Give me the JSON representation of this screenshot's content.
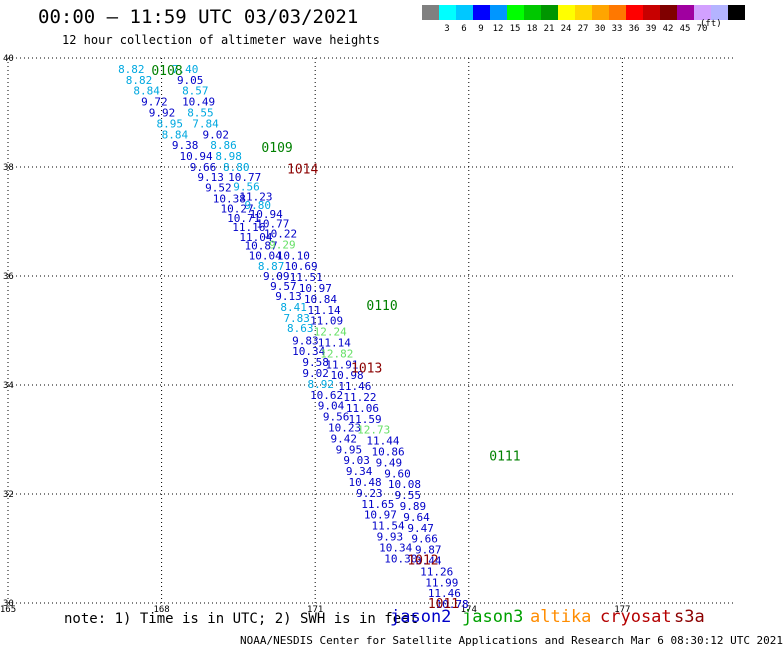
{
  "title": "00:00 – 11:59 UTC 03/03/2021",
  "subtitle": "12 hour collection of altimeter wave heights",
  "note": "note: 1) Time is in UTC; 2) SWH is in feet",
  "credit": "NOAA/NESDIS Center for Satellite Applications and Research  Mar  6 08:30:12 UTC 2021",
  "colors": {
    "jason2": "#0000c8",
    "jason3": "#00a000",
    "altika": "#ff8c00",
    "cryosat": "#b40000",
    "s3a": "#8b0000",
    "cyan_value": "#00a8e0",
    "light_green_value": "#66e066",
    "pass_green": "#008000",
    "pass_red": "#8b0000"
  },
  "legend": [
    {
      "key": "jason2",
      "label": "jason2",
      "color": "#0000c8"
    },
    {
      "key": "jason3",
      "label": "jason3",
      "color": "#00a000"
    },
    {
      "key": "altika",
      "label": "altika",
      "color": "#ff8c00"
    },
    {
      "key": "cryosat",
      "label": "cryosat",
      "color": "#b40000"
    },
    {
      "key": "s3a",
      "label": "s3a",
      "color": "#8b0000"
    }
  ],
  "scale": {
    "unit": "(ft)",
    "swatches": [
      "#808080",
      "#00ffff",
      "#00c8ff",
      "#0000ff",
      "#0096ff",
      "#00ff00",
      "#00c800",
      "#009600",
      "#ffff00",
      "#ffd700",
      "#ffa500",
      "#ff7800",
      "#ff0000",
      "#c80000",
      "#800000",
      "#a000a0",
      "#d2a0ff",
      "#b4b4ff",
      "#000000"
    ],
    "labels": [
      "3",
      "6",
      "9",
      "12",
      "15",
      "18",
      "21",
      "24",
      "27",
      "30",
      "33",
      "36",
      "39",
      "42",
      "45",
      "70"
    ]
  },
  "map_axes": {
    "lon_ticks": [
      "165",
      "168",
      "171",
      "174",
      "177"
    ],
    "lat_ticks": [
      "40",
      "38",
      "36",
      "34",
      "32",
      "30"
    ],
    "lon_range": [
      165,
      179.2
    ],
    "lat_range": [
      30,
      40
    ]
  },
  "pass_labels": [
    {
      "text": "0108",
      "lon": 167.8,
      "lat": 39.78,
      "c": "pass_green"
    },
    {
      "text": "0109",
      "lon": 169.95,
      "lat": 38.37,
      "c": "pass_green"
    },
    {
      "text": "1014",
      "lon": 170.45,
      "lat": 37.97,
      "c": "pass_red"
    },
    {
      "text": "0110",
      "lon": 172.0,
      "lat": 35.47,
      "c": "pass_green"
    },
    {
      "text": "1013",
      "lon": 171.7,
      "lat": 34.32,
      "c": "pass_red"
    },
    {
      "text": "0111",
      "lon": 174.4,
      "lat": 32.71,
      "c": "pass_green"
    },
    {
      "text": "1012",
      "lon": 172.8,
      "lat": 30.8,
      "c": "pass_red"
    },
    {
      "text": "1011",
      "lon": 173.2,
      "lat": 30.0,
      "c": "pass_red"
    }
  ],
  "tracks": [
    {
      "name": "jason-pass-track",
      "points": [
        {
          "lon": 167.15,
          "lat": 39.8,
          "v": "8.82",
          "c": "cyan_value"
        },
        {
          "lon": 167.3,
          "lat": 39.6,
          "v": "8.82",
          "c": "cyan_value"
        },
        {
          "lon": 167.45,
          "lat": 39.4,
          "v": "8.84",
          "c": "cyan_value"
        },
        {
          "lon": 167.6,
          "lat": 39.2,
          "v": "9.72",
          "c": "jason2"
        },
        {
          "lon": 167.75,
          "lat": 39.0,
          "v": "9.92",
          "c": "jason2"
        },
        {
          "lon": 167.9,
          "lat": 38.8,
          "v": "8.95",
          "c": "cyan_value"
        },
        {
          "lon": 168.0,
          "lat": 38.6,
          "v": "8.84",
          "c": "cyan_value"
        },
        {
          "lon": 168.2,
          "lat": 38.4,
          "v": "9.38",
          "c": "jason2"
        },
        {
          "lon": 168.35,
          "lat": 38.2,
          "v": "10.94",
          "c": "jason2"
        },
        {
          "lon": 168.55,
          "lat": 38.0,
          "v": "9.66",
          "c": "jason2"
        },
        {
          "lon": 168.7,
          "lat": 37.82,
          "v": "9.13",
          "c": "jason2"
        },
        {
          "lon": 168.85,
          "lat": 37.62,
          "v": "9.52",
          "c": "jason2"
        },
        {
          "lon": 169.0,
          "lat": 37.42,
          "v": "10.38",
          "c": "jason2"
        },
        {
          "lon": 169.15,
          "lat": 37.24,
          "v": "10.27",
          "c": "jason2"
        },
        {
          "lon": 169.28,
          "lat": 37.06,
          "v": "10.71",
          "c": "jason2"
        },
        {
          "lon": 169.38,
          "lat": 36.9,
          "v": "11.16",
          "c": "jason2"
        },
        {
          "lon": 169.52,
          "lat": 36.72,
          "v": "11.04",
          "c": "jason2"
        },
        {
          "lon": 169.62,
          "lat": 36.56,
          "v": "10.87",
          "c": "jason2"
        },
        {
          "lon": 169.7,
          "lat": 36.38,
          "v": "10.04",
          "c": "jason2"
        },
        {
          "lon": 169.88,
          "lat": 36.18,
          "v": "8.87",
          "c": "cyan_value"
        },
        {
          "lon": 169.98,
          "lat": 36.0,
          "v": "9.09",
          "c": "jason2"
        },
        {
          "lon": 170.12,
          "lat": 35.82,
          "v": "9.57",
          "c": "jason2"
        },
        {
          "lon": 170.22,
          "lat": 35.63,
          "v": "9.13",
          "c": "jason2"
        },
        {
          "lon": 170.32,
          "lat": 35.43,
          "v": "8.41",
          "c": "cyan_value"
        },
        {
          "lon": 170.38,
          "lat": 35.23,
          "v": "7.83",
          "c": "cyan_value"
        },
        {
          "lon": 170.45,
          "lat": 35.05,
          "v": "8.63",
          "c": "cyan_value"
        },
        {
          "lon": 170.55,
          "lat": 34.82,
          "v": "9.83",
          "c": "jason2"
        },
        {
          "lon": 170.55,
          "lat": 34.62,
          "v": "10.34",
          "c": "jason2"
        },
        {
          "lon": 170.75,
          "lat": 34.42,
          "v": "9.58",
          "c": "jason2"
        },
        {
          "lon": 170.75,
          "lat": 34.22,
          "v": "9.02",
          "c": "jason2"
        },
        {
          "lon": 170.85,
          "lat": 34.02,
          "v": "8.92",
          "c": "cyan_value"
        },
        {
          "lon": 170.9,
          "lat": 33.82,
          "v": "10.62",
          "c": "jason2"
        },
        {
          "lon": 171.05,
          "lat": 33.62,
          "v": "9.04",
          "c": "jason2"
        },
        {
          "lon": 171.15,
          "lat": 33.42,
          "v": "9.56",
          "c": "jason2"
        },
        {
          "lon": 171.25,
          "lat": 33.22,
          "v": "10.23",
          "c": "jason2"
        },
        {
          "lon": 171.3,
          "lat": 33.02,
          "v": "9.42",
          "c": "jason2"
        },
        {
          "lon": 171.4,
          "lat": 32.82,
          "v": "9.95",
          "c": "jason2"
        },
        {
          "lon": 171.55,
          "lat": 32.62,
          "v": "9.03",
          "c": "jason2"
        },
        {
          "lon": 171.6,
          "lat": 32.42,
          "v": "9.34",
          "c": "jason2"
        },
        {
          "lon": 171.65,
          "lat": 32.22,
          "v": "10.48",
          "c": "jason2"
        },
        {
          "lon": 171.8,
          "lat": 32.02,
          "v": "9.23",
          "c": "jason2"
        },
        {
          "lon": 171.9,
          "lat": 31.82,
          "v": "11.65",
          "c": "jason2"
        },
        {
          "lon": 171.95,
          "lat": 31.62,
          "v": "10.97",
          "c": "jason2"
        },
        {
          "lon": 172.1,
          "lat": 31.42,
          "v": "11.54",
          "c": "jason2"
        },
        {
          "lon": 172.2,
          "lat": 31.22,
          "v": "9.93",
          "c": "jason2"
        },
        {
          "lon": 172.25,
          "lat": 31.02,
          "v": "10.34",
          "c": "jason2"
        },
        {
          "lon": 172.35,
          "lat": 30.82,
          "v": "10.30",
          "c": "jason2"
        }
      ]
    },
    {
      "name": "cryosat-pass-track",
      "points": [
        {
          "lon": 168.2,
          "lat": 39.8,
          "v": "7.40",
          "c": "cyan_value"
        },
        {
          "lon": 168.3,
          "lat": 39.6,
          "v": "9.05",
          "c": "jason2"
        },
        {
          "lon": 168.4,
          "lat": 39.4,
          "v": "8.57",
          "c": "cyan_value"
        },
        {
          "lon": 168.4,
          "lat": 39.2,
          "v": "10.49",
          "c": "jason2"
        },
        {
          "lon": 168.5,
          "lat": 39.0,
          "v": "8.55",
          "c": "cyan_value"
        },
        {
          "lon": 168.6,
          "lat": 38.8,
          "v": "7.84",
          "c": "cyan_value"
        },
        {
          "lon": 168.8,
          "lat": 38.6,
          "v": "9.02",
          "c": "jason2"
        },
        {
          "lon": 168.95,
          "lat": 38.4,
          "v": "8.86",
          "c": "cyan_value"
        },
        {
          "lon": 169.05,
          "lat": 38.2,
          "v": "8.98",
          "c": "cyan_value"
        },
        {
          "lon": 169.2,
          "lat": 38.0,
          "v": "8.80",
          "c": "cyan_value"
        },
        {
          "lon": 169.3,
          "lat": 37.82,
          "v": "10.77",
          "c": "jason2"
        },
        {
          "lon": 169.4,
          "lat": 37.64,
          "v": "9.56",
          "c": "cyan_value"
        },
        {
          "lon": 169.52,
          "lat": 37.46,
          "v": "11.23",
          "c": "jason2"
        },
        {
          "lon": 169.62,
          "lat": 37.3,
          "v": "9.80",
          "c": "cyan_value"
        },
        {
          "lon": 169.72,
          "lat": 37.14,
          "v": "10.94",
          "c": "jason2"
        },
        {
          "lon": 169.85,
          "lat": 36.96,
          "v": "10.77",
          "c": "jason2"
        },
        {
          "lon": 170.0,
          "lat": 36.78,
          "v": "10.22",
          "c": "jason2"
        },
        {
          "lon": 170.1,
          "lat": 36.58,
          "v": "9.29",
          "c": "light_green_value"
        },
        {
          "lon": 170.25,
          "lat": 36.38,
          "v": "10.10",
          "c": "jason2"
        },
        {
          "lon": 170.4,
          "lat": 36.18,
          "v": "10.69",
          "c": "jason2"
        },
        {
          "lon": 170.5,
          "lat": 35.98,
          "v": "11.51",
          "c": "jason2"
        },
        {
          "lon": 170.68,
          "lat": 35.78,
          "v": "10.97",
          "c": "jason2"
        },
        {
          "lon": 170.78,
          "lat": 35.58,
          "v": "10.84",
          "c": "jason2"
        },
        {
          "lon": 170.85,
          "lat": 35.38,
          "v": "11.14",
          "c": "jason2"
        },
        {
          "lon": 170.9,
          "lat": 35.18,
          "v": "11.09",
          "c": "jason2"
        },
        {
          "lon": 170.97,
          "lat": 34.98,
          "v": "12.24",
          "c": "light_green_value"
        },
        {
          "lon": 171.05,
          "lat": 34.78,
          "v": "11.14",
          "c": "jason2"
        },
        {
          "lon": 171.1,
          "lat": 34.58,
          "v": "12.82",
          "c": "light_green_value"
        },
        {
          "lon": 171.2,
          "lat": 34.38,
          "v": "11.91",
          "c": "jason2"
        },
        {
          "lon": 171.3,
          "lat": 34.18,
          "v": "10.98",
          "c": "jason2"
        },
        {
          "lon": 171.45,
          "lat": 33.98,
          "v": "11.46",
          "c": "jason2"
        },
        {
          "lon": 171.55,
          "lat": 33.78,
          "v": "11.22",
          "c": "jason2"
        },
        {
          "lon": 171.6,
          "lat": 33.58,
          "v": "11.06",
          "c": "jason2"
        },
        {
          "lon": 171.65,
          "lat": 33.38,
          "v": "11.59",
          "c": "jason2"
        },
        {
          "lon": 171.82,
          "lat": 33.18,
          "v": "12.73",
          "c": "light_green_value"
        },
        {
          "lon": 172.0,
          "lat": 32.98,
          "v": "11.44",
          "c": "jason2"
        },
        {
          "lon": 172.1,
          "lat": 32.78,
          "v": "10.86",
          "c": "jason2"
        },
        {
          "lon": 172.18,
          "lat": 32.58,
          "v": "9.49",
          "c": "jason2"
        },
        {
          "lon": 172.35,
          "lat": 32.38,
          "v": "9.60",
          "c": "jason2"
        },
        {
          "lon": 172.42,
          "lat": 32.18,
          "v": "10.08",
          "c": "jason2"
        },
        {
          "lon": 172.55,
          "lat": 31.98,
          "v": "9.55",
          "c": "jason2"
        },
        {
          "lon": 172.65,
          "lat": 31.78,
          "v": "9.89",
          "c": "jason2"
        },
        {
          "lon": 172.72,
          "lat": 31.58,
          "v": "9.64",
          "c": "jason2"
        },
        {
          "lon": 172.8,
          "lat": 31.38,
          "v": "9.47",
          "c": "jason2"
        },
        {
          "lon": 172.88,
          "lat": 31.18,
          "v": "9.66",
          "c": "jason2"
        },
        {
          "lon": 172.95,
          "lat": 30.98,
          "v": "9.87",
          "c": "jason2"
        },
        {
          "lon": 172.95,
          "lat": 30.78,
          "v": "9.44",
          "c": "jason2"
        },
        {
          "lon": 173.05,
          "lat": 30.58,
          "v": "11.26",
          "c": "jason2"
        },
        {
          "lon": 173.15,
          "lat": 30.38,
          "v": "11.99",
          "c": "jason2"
        },
        {
          "lon": 173.2,
          "lat": 30.18,
          "v": "11.46",
          "c": "jason2"
        },
        {
          "lon": 173.35,
          "lat": 29.98,
          "v": "10.78",
          "c": "jason2"
        }
      ]
    }
  ]
}
